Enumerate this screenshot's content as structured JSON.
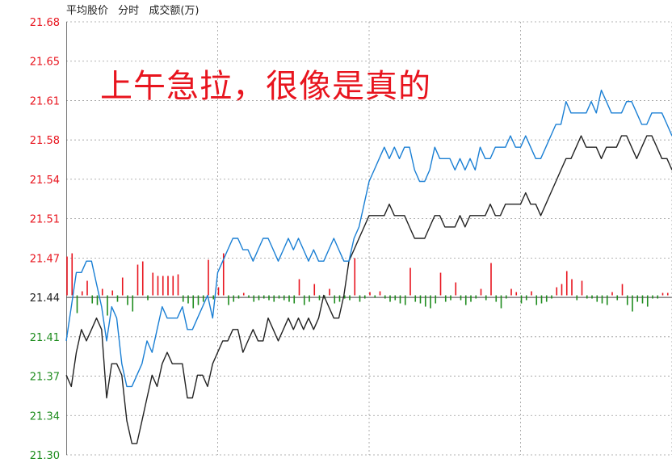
{
  "header": {
    "metric1": "平均股价",
    "metric2": "分时",
    "metric3": "成交额(万)"
  },
  "annotation": "上午急拉，很像是真的",
  "colors": {
    "up": "#e8141e",
    "down": "#1e8c1e",
    "price_line": "#1a7fd4",
    "avg_line": "#222222",
    "grid": "#9a9a9a",
    "baseline": "#666666"
  },
  "chart_data": {
    "type": "line",
    "title": "",
    "xlabel": "",
    "ylabel": "",
    "ylim": [
      21.3,
      21.68
    ],
    "xlim": [
      0,
      120
    ],
    "base_price": 21.44,
    "y_ticks": [
      "21.68",
      "21.65",
      "21.61",
      "21.58",
      "21.54",
      "21.51",
      "21.47",
      "21.44",
      "21.41",
      "21.37",
      "21.34",
      "21.30"
    ],
    "series": [
      {
        "key": "price",
        "values": [
          21.4,
          21.43,
          21.46,
          21.46,
          21.47,
          21.47,
          21.45,
          21.43,
          21.4,
          21.43,
          21.42,
          21.38,
          21.36,
          21.36,
          21.37,
          21.38,
          21.4,
          21.39,
          21.41,
          21.43,
          21.42,
          21.42,
          21.42,
          21.43,
          21.41,
          21.41,
          21.42,
          21.43,
          21.44,
          21.42,
          21.46,
          21.47,
          21.48,
          21.49,
          21.49,
          21.48,
          21.48,
          21.47,
          21.48,
          21.49,
          21.49,
          21.48,
          21.47,
          21.48,
          21.49,
          21.48,
          21.49,
          21.48,
          21.47,
          21.48,
          21.47,
          21.47,
          21.48,
          21.49,
          21.48,
          21.47,
          21.47,
          21.49,
          21.5,
          21.52,
          21.54,
          21.55,
          21.56,
          21.57,
          21.56,
          21.57,
          21.56,
          21.57,
          21.57,
          21.55,
          21.54,
          21.54,
          21.55,
          21.57,
          21.56,
          21.56,
          21.56,
          21.55,
          21.56,
          21.55,
          21.56,
          21.55,
          21.57,
          21.56,
          21.56,
          21.57,
          21.57,
          21.57,
          21.58,
          21.57,
          21.57,
          21.58,
          21.57,
          21.56,
          21.56,
          21.57,
          21.58,
          21.59,
          21.59,
          21.61,
          21.6,
          21.6,
          21.6,
          21.6,
          21.61,
          21.6,
          21.62,
          21.61,
          21.6,
          21.6,
          21.6,
          21.61,
          21.61,
          21.6,
          21.59,
          21.59,
          21.6,
          21.6,
          21.6,
          21.59,
          21.58
        ]
      },
      {
        "key": "average",
        "values": [
          21.37,
          21.36,
          21.39,
          21.41,
          21.4,
          21.41,
          21.42,
          21.41,
          21.35,
          21.38,
          21.38,
          21.37,
          21.33,
          21.31,
          21.31,
          21.33,
          21.35,
          21.37,
          21.36,
          21.38,
          21.39,
          21.38,
          21.38,
          21.38,
          21.35,
          21.35,
          21.37,
          21.37,
          21.36,
          21.38,
          21.39,
          21.4,
          21.4,
          21.41,
          21.41,
          21.39,
          21.4,
          21.41,
          21.4,
          21.4,
          21.42,
          21.41,
          21.4,
          21.41,
          21.42,
          21.41,
          21.42,
          21.41,
          21.42,
          21.41,
          21.42,
          21.44,
          21.43,
          21.42,
          21.42,
          21.44,
          21.47,
          21.48,
          21.49,
          21.5,
          21.51,
          21.51,
          21.51,
          21.51,
          21.52,
          21.51,
          21.51,
          21.51,
          21.5,
          21.49,
          21.49,
          21.49,
          21.5,
          21.51,
          21.51,
          21.5,
          21.5,
          21.5,
          21.51,
          21.5,
          21.51,
          21.51,
          21.51,
          21.51,
          21.52,
          21.51,
          21.51,
          21.52,
          21.52,
          21.52,
          21.52,
          21.53,
          21.52,
          21.52,
          21.51,
          21.52,
          21.53,
          21.54,
          21.55,
          21.56,
          21.56,
          21.57,
          21.58,
          21.57,
          21.57,
          21.57,
          21.56,
          21.57,
          21.57,
          21.57,
          21.58,
          21.58,
          21.57,
          21.56,
          21.57,
          21.58,
          21.58,
          21.57,
          21.56,
          21.56,
          21.55
        ]
      },
      {
        "key": "volume",
        "values": [
          48,
          52,
          -22,
          5,
          18,
          -10,
          -12,
          8,
          -25,
          6,
          -8,
          22,
          -12,
          -20,
          38,
          42,
          -6,
          28,
          24,
          24,
          24,
          24,
          26,
          -8,
          -10,
          -16,
          -12,
          -8,
          44,
          -5,
          10,
          52,
          -12,
          -8,
          -4,
          3,
          -3,
          -8,
          -6,
          -4,
          -6,
          -8,
          -4,
          -6,
          -8,
          -10,
          20,
          -12,
          -8,
          14,
          -6,
          -4,
          8,
          -10,
          -8,
          -4,
          -6,
          46,
          -8,
          -4,
          4,
          -3,
          5,
          -4,
          -8,
          -6,
          -10,
          -12,
          34,
          -8,
          -10,
          -14,
          -16,
          -10,
          28,
          -8,
          -6,
          16,
          -6,
          -12,
          -8,
          -4,
          8,
          -6,
          40,
          -8,
          -16,
          -4,
          8,
          4,
          -10,
          -6,
          5,
          -12,
          -10,
          -8,
          -4,
          10,
          14,
          30,
          20,
          -6,
          18,
          -4,
          -4,
          -8,
          -10,
          -12,
          4,
          -6,
          14,
          -12,
          -20,
          -8,
          -10,
          -14,
          -4,
          -4,
          3,
          3,
          6,
          -4,
          -20,
          -18,
          -16
        ]
      }
    ]
  }
}
